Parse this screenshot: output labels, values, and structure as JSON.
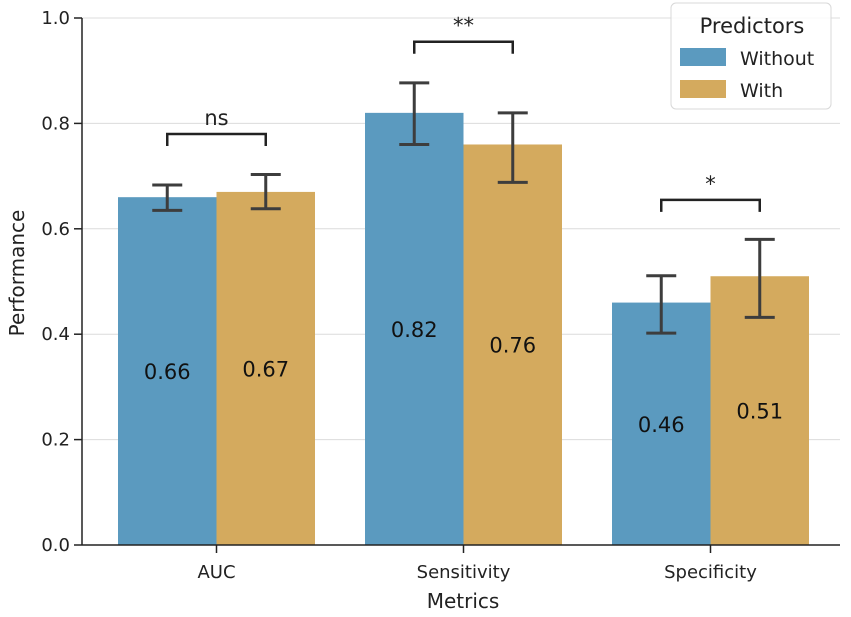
{
  "chart_data": {
    "type": "bar",
    "xlabel": "Metrics",
    "ylabel": "Performance",
    "ylim": [
      0,
      1.0
    ],
    "yticks": [
      0.0,
      0.2,
      0.4,
      0.6,
      0.8,
      1.0
    ],
    "ytick_labels": [
      "0.0",
      "0.2",
      "0.4",
      "0.6",
      "0.8",
      "1.0"
    ],
    "grid": true,
    "categories": [
      "AUC",
      "Sensitivity",
      "Specificity"
    ],
    "legend": {
      "title": "Predictors",
      "position": "top-right"
    },
    "series": [
      {
        "name": "Without",
        "color": "#5b9abf",
        "values": [
          0.66,
          0.82,
          0.46
        ],
        "labels": [
          "0.66",
          "0.82",
          "0.46"
        ],
        "error_low": [
          0.635,
          0.76,
          0.402
        ],
        "error_high": [
          0.683,
          0.877,
          0.511
        ]
      },
      {
        "name": "With",
        "color": "#d4aa5e",
        "values": [
          0.67,
          0.76,
          0.51
        ],
        "labels": [
          "0.67",
          "0.76",
          "0.51"
        ],
        "error_low": [
          0.638,
          0.688,
          0.432
        ],
        "error_high": [
          0.703,
          0.82,
          0.58
        ]
      }
    ],
    "significance": [
      {
        "category": "AUC",
        "label": "ns",
        "bracket_y": 0.78
      },
      {
        "category": "Sensitivity",
        "label": "**",
        "bracket_y": 0.955
      },
      {
        "category": "Specificity",
        "label": "*",
        "bracket_y": 0.655
      }
    ]
  }
}
